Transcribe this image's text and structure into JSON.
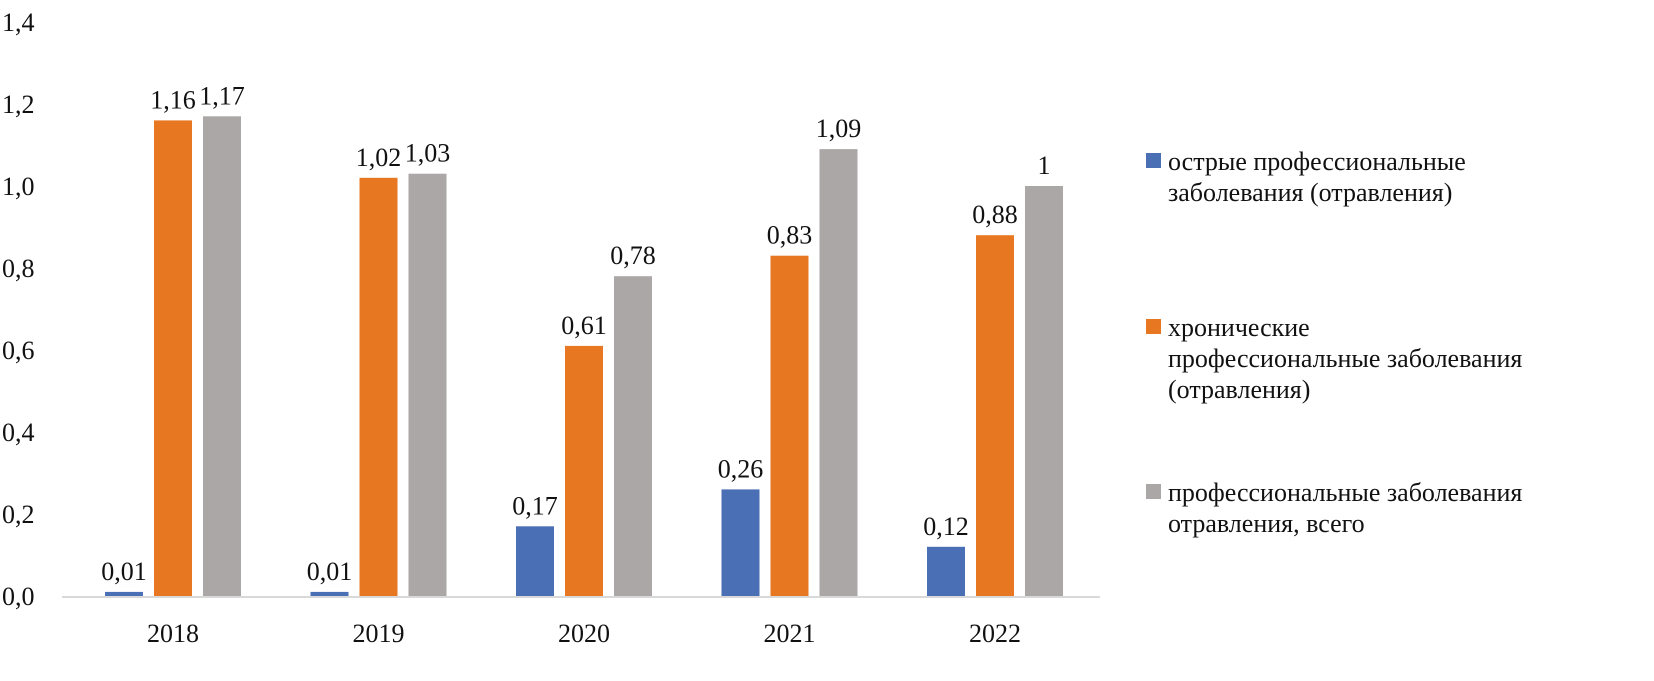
{
  "chart_data": {
    "type": "bar",
    "categories": [
      "2018",
      "2019",
      "2020",
      "2021",
      "2022"
    ],
    "series": [
      {
        "name": "острые профессиональные заболевания (отравления)",
        "color": "#4a6fb5",
        "values": [
          0.01,
          0.01,
          0.17,
          0.26,
          0.12
        ],
        "labels": [
          "0,01",
          "0,01",
          "0,17",
          "0,26",
          "0,12"
        ]
      },
      {
        "name": "хронические профессиональные заболевания (отравления)",
        "color": "#e87722",
        "values": [
          1.16,
          1.02,
          0.61,
          0.83,
          0.88
        ],
        "labels": [
          "1,16",
          "1,02",
          "0,61",
          "0,83",
          "0,88"
        ]
      },
      {
        "name": "профессиональные заболевания отравления, всего",
        "color": "#aba7a6",
        "values": [
          1.17,
          1.03,
          0.78,
          1.09,
          1.0
        ],
        "labels": [
          "1,17",
          "1,03",
          "0,78",
          "1,09",
          "1"
        ]
      }
    ],
    "yticks": [
      "0,0",
      "0,2",
      "0,4",
      "0,6",
      "0,8",
      "1,0",
      "1,2",
      "1,4"
    ],
    "ylim": [
      0,
      1.4
    ],
    "grid": false,
    "legend_position": "right",
    "title": "",
    "xlabel": "",
    "ylabel": ""
  },
  "legend": {
    "items": [
      {
        "lines": [
          "острые профессиональные",
          "заболевания (отравления)"
        ]
      },
      {
        "lines": [
          "хронические",
          "профессиональные заболевания",
          "(отравления)"
        ]
      },
      {
        "lines": [
          "профессиональные заболевания",
          "отравления, всего"
        ]
      }
    ]
  }
}
